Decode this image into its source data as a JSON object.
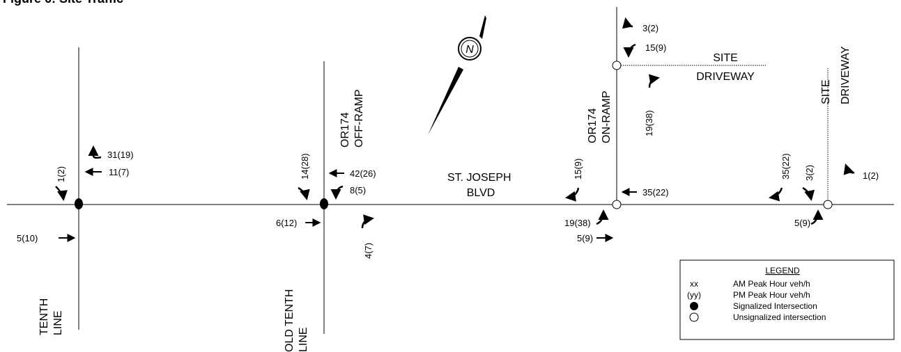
{
  "figure": {
    "title": "Figure 6: Site Traffic"
  },
  "roads": {
    "main": [
      "ST. JOSEPH",
      "BLVD"
    ],
    "tenth_line": [
      "TENTH",
      "LINE"
    ],
    "old_tenth_line": [
      "OLD TENTH",
      "LINE"
    ],
    "or174_off": [
      "OR174",
      "OFF-RAMP"
    ],
    "or174_on": [
      "OR174",
      "ON-RAMP"
    ],
    "site_driveway_north": [
      "SITE",
      "DRIVEWAY"
    ],
    "site_driveway_east": [
      "SITE",
      "DRIVEWAY"
    ]
  },
  "volumes": {
    "tenth_sb_right": "1(2)",
    "tenth_wb_right": "31(19)",
    "tenth_wb_through": "11(7)",
    "tenth_eb_through": "5(10)",
    "old_sb_right": "14(28)",
    "old_wb_through": "42(26)",
    "old_wb_left": "8(5)",
    "old_eb_through": "6(12)",
    "old_eb_left": "4(7)",
    "on_wb_left": "15(9)",
    "on_wb_through": "35(22)",
    "on_eb_left": "19(38)",
    "on_eb_through": "5(9)",
    "driveway_nb_right": "3(2)",
    "driveway_nb_left": "15(9)",
    "driveway_eb_right": "19(38)",
    "east_wb_left": "35(22)",
    "east_sb_right": "3(2)",
    "east_nb_left": "1(2)",
    "east_eb_left": "5(9)"
  },
  "compass": {
    "letter": "N"
  },
  "legend": {
    "title": "LEGEND",
    "rows": [
      {
        "symbol": "xx",
        "text": "AM Peak Hour veh/h"
      },
      {
        "symbol": "(yy)",
        "text": "PM Peak Hour veh/h"
      },
      {
        "symbol": "filled-circle",
        "text": "Signalized Intersection"
      },
      {
        "symbol": "open-circle",
        "text": "Unsignalized intersection"
      }
    ]
  }
}
